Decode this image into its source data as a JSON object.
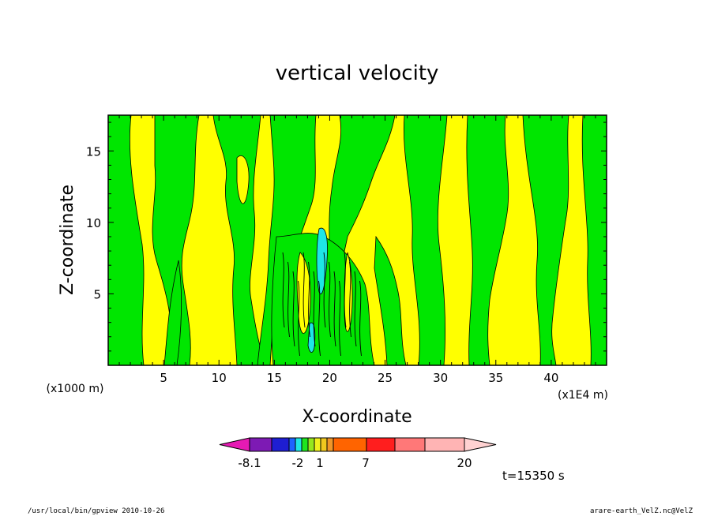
{
  "chart_data": {
    "type": "heatmap",
    "title": "vertical velocity",
    "xlabel": "X-coordinate",
    "ylabel": "Z-coordinate",
    "x_unit": "(x1E4 m)",
    "y_unit": "(x1000 m)",
    "xlim": [
      0,
      45
    ],
    "ylim": [
      0,
      17.5
    ],
    "x_ticks": [
      5,
      10,
      15,
      20,
      25,
      30,
      35,
      40
    ],
    "y_ticks": [
      5,
      10,
      15
    ],
    "colorbar": {
      "labels": [
        "-8.1",
        "-2",
        "1",
        "7",
        "20"
      ],
      "colors": [
        "#e61ab4",
        "#7d1ab4",
        "#1e1ed2",
        "#1e64ff",
        "#1ee6e6",
        "#1ee61e",
        "#96e61e",
        "#f0f01e",
        "#f0c81e",
        "#f09628",
        "#ff6400",
        "#ff1e1e",
        "#ff7878",
        "#ffb4b4",
        "#ffd2d2"
      ]
    },
    "fields": {
      "dominant_colors": [
        "#00e600",
        "#ffff00"
      ]
    }
  },
  "footer": {
    "time_label": "t=15350 s",
    "left_info": "/usr/local/bin/gpview   2010-10-26",
    "right_info": "arare-earth_VelZ.nc@VelZ"
  }
}
